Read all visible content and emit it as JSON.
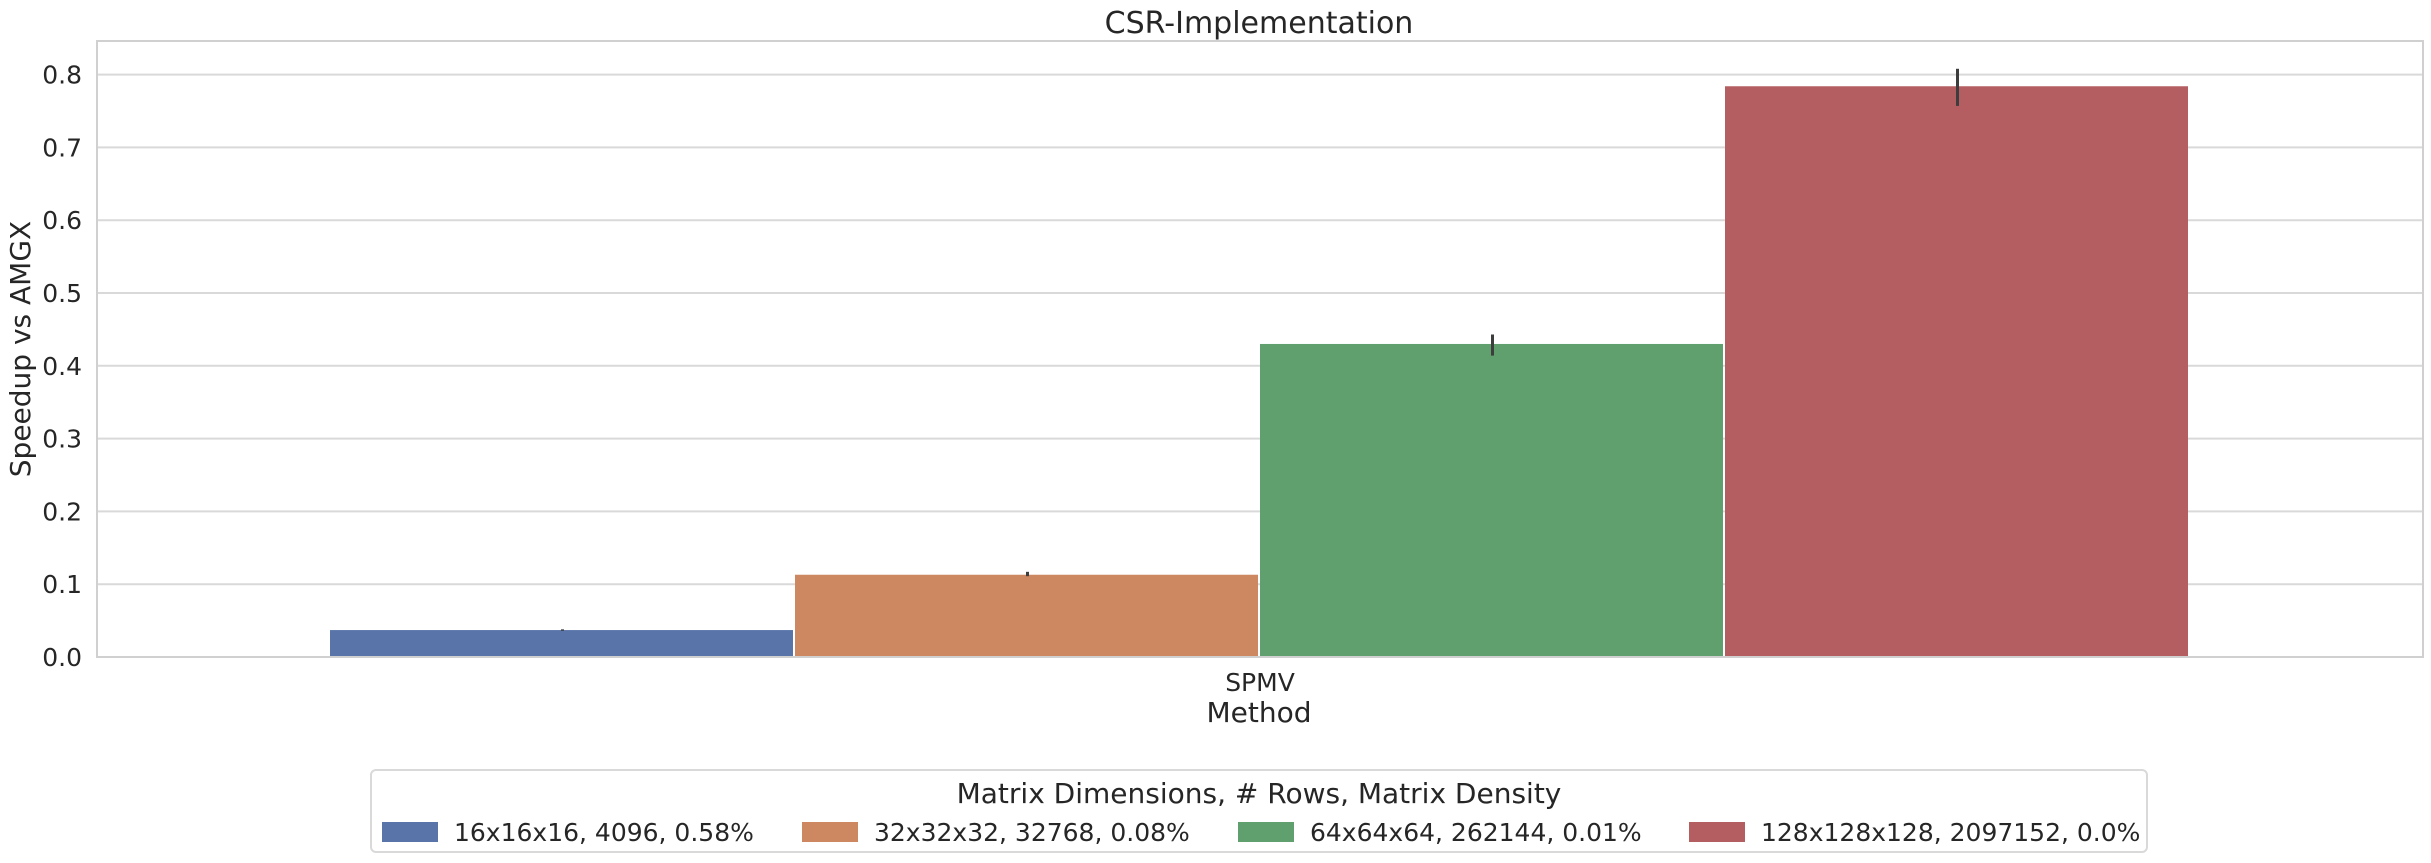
{
  "chart_data": {
    "type": "bar",
    "title": "CSR-Implementation",
    "xlabel": "Method",
    "ylabel": "Speedup vs AMGX",
    "categories": [
      "SPMV"
    ],
    "ylim": [
      0,
      0.85
    ],
    "yticks": [
      "0.0",
      "0.1",
      "0.2",
      "0.3",
      "0.4",
      "0.5",
      "0.6",
      "0.7",
      "0.8"
    ],
    "grid": true,
    "legend": {
      "title": "Matrix Dimensions, # Rows, Matrix Density",
      "placement": "bottom-center"
    },
    "series": [
      {
        "name": "16x16x16, 4096, 0.58%",
        "values": [
          0.037
        ],
        "error": [
          0.036,
          0.038
        ],
        "color": "#5874a9"
      },
      {
        "name": "32x32x32, 32768, 0.08%",
        "values": [
          0.113
        ],
        "error": [
          0.111,
          0.117
        ],
        "color": "#cd8761"
      },
      {
        "name": "64x64x64, 262144, 0.01%",
        "values": [
          0.43
        ],
        "error": [
          0.414,
          0.443
        ],
        "color": "#60a06f"
      },
      {
        "name": "128x128x128, 2097152, 0.0%",
        "values": [
          0.784
        ],
        "error": [
          0.757,
          0.808
        ],
        "color": "#b55e61"
      }
    ]
  }
}
